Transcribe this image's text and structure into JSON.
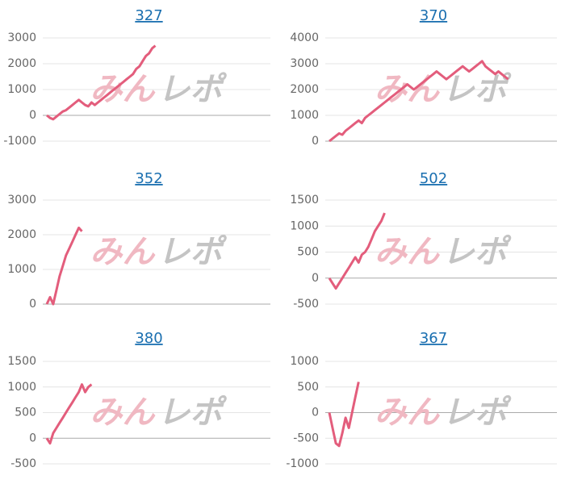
{
  "watermark": {
    "left": "みん",
    "right": "レポ"
  },
  "chart_data": [
    {
      "type": "line",
      "title": "327",
      "color": "#e35d7c",
      "ylim": [
        -1000,
        3000
      ],
      "yticks": [
        -1000,
        0,
        1000,
        2000,
        3000
      ],
      "values": [
        0,
        -100,
        -150,
        -50,
        50,
        150,
        200,
        300,
        400,
        500,
        600,
        500,
        400,
        350,
        500,
        400,
        500,
        600,
        700,
        800,
        900,
        1000,
        1100,
        1200,
        1300,
        1400,
        1500,
        1600,
        1800,
        1900,
        2100,
        2300,
        2400,
        2600,
        2700
      ]
    },
    {
      "type": "line",
      "title": "370",
      "color": "#e35d7c",
      "ylim": [
        0,
        4000
      ],
      "yticks": [
        0,
        1000,
        2000,
        3000,
        4000
      ],
      "values": [
        0,
        100,
        200,
        300,
        250,
        400,
        500,
        600,
        700,
        800,
        700,
        900,
        1000,
        1100,
        1200,
        1300,
        1400,
        1500,
        1600,
        1700,
        1800,
        1900,
        2000,
        2100,
        2200,
        2100,
        2000,
        2100,
        2200,
        2300,
        2400,
        2500,
        2600,
        2700,
        2600,
        2500,
        2400,
        2500,
        2600,
        2700,
        2800,
        2900,
        2800,
        2700,
        2800,
        2900,
        3000,
        3100,
        2900,
        2800,
        2700,
        2600,
        2700,
        2600,
        2500,
        2400
      ]
    },
    {
      "type": "line",
      "title": "352",
      "color": "#e35d7c",
      "ylim": [
        0,
        3000
      ],
      "yticks": [
        0,
        1000,
        2000,
        3000
      ],
      "values": [
        0,
        200,
        0,
        400,
        800,
        1100,
        1400,
        1600,
        1800,
        2000,
        2200,
        2100
      ]
    },
    {
      "type": "line",
      "title": "502",
      "color": "#e35d7c",
      "ylim": [
        -500,
        1500
      ],
      "yticks": [
        -500,
        0,
        500,
        1000,
        1500
      ],
      "values": [
        0,
        -100,
        -200,
        -100,
        0,
        100,
        200,
        300,
        400,
        300,
        450,
        500,
        600,
        750,
        900,
        1000,
        1100,
        1250
      ]
    },
    {
      "type": "line",
      "title": "380",
      "color": "#e35d7c",
      "ylim": [
        -500,
        1500
      ],
      "yticks": [
        -500,
        0,
        500,
        1000,
        1500
      ],
      "values": [
        0,
        -100,
        100,
        200,
        300,
        400,
        500,
        600,
        700,
        800,
        900,
        1050,
        900,
        1000,
        1050
      ]
    },
    {
      "type": "line",
      "title": "367",
      "color": "#e35d7c",
      "ylim": [
        -1000,
        1000
      ],
      "yticks": [
        -1000,
        -500,
        0,
        500,
        1000
      ],
      "values": [
        0,
        -300,
        -600,
        -650,
        -400,
        -100,
        -300,
        0,
        300,
        600
      ]
    }
  ]
}
